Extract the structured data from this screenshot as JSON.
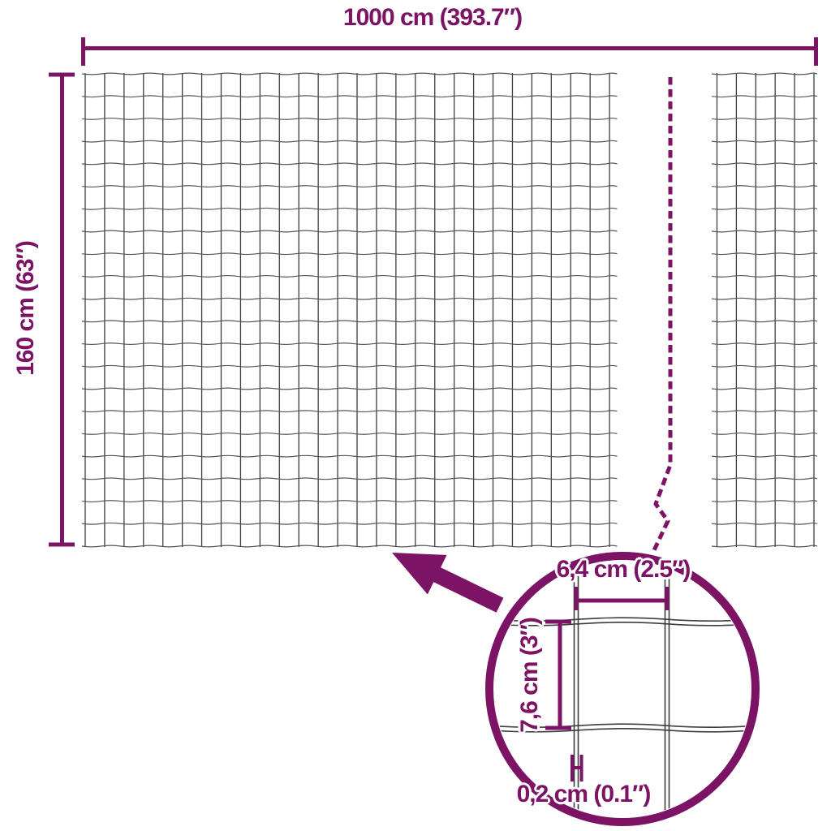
{
  "colors": {
    "accent": "#7c1364",
    "wire_dark": "#3d3d3d",
    "wire_light": "#565656"
  },
  "labels": {
    "total_width": "1000 cm (393.7″)",
    "total_height": "160 cm (63″)"
  },
  "magnifier": {
    "mesh_width": "6,4 cm (2.5″)",
    "mesh_height": "7,6 cm (3″)",
    "wire_thickness": "0,2 cm (0.1″)"
  }
}
